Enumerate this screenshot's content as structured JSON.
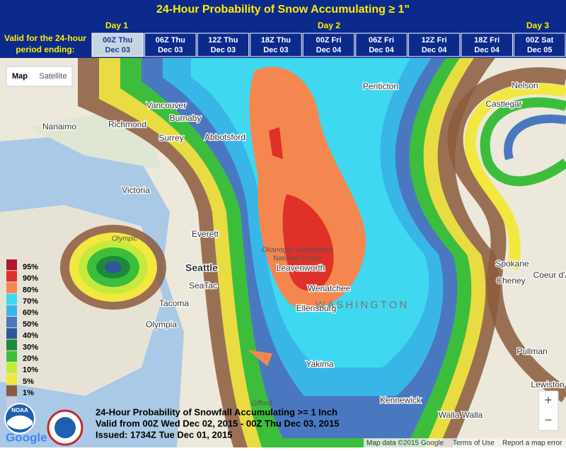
{
  "header": {
    "title": "24-Hour Probability of Snow Accumulating ≥ 1\"",
    "days": [
      "Day 1",
      "Day 2",
      "Day 3"
    ],
    "valid_label": [
      "Valid for the 24-hour",
      "period ending:"
    ],
    "tabs": [
      {
        "time": "00Z Thu",
        "date": "Dec 03"
      },
      {
        "time": "06Z Thu",
        "date": "Dec 03"
      },
      {
        "time": "12Z Thu",
        "date": "Dec 03"
      },
      {
        "time": "18Z Thu",
        "date": "Dec 03"
      },
      {
        "time": "00Z Fri",
        "date": "Dec 04"
      },
      {
        "time": "06Z Fri",
        "date": "Dec 04"
      },
      {
        "time": "12Z Fri",
        "date": "Dec 04"
      },
      {
        "time": "18Z Fri",
        "date": "Dec 04"
      },
      {
        "time": "00Z Sat",
        "date": "Dec 05"
      }
    ]
  },
  "map_controls": [
    "Map",
    "Satellite"
  ],
  "places": [
    "Vancouver",
    "Burnaby",
    "Richmond",
    "Nanaimo",
    "Surrey",
    "Abbotsford",
    "Victoria",
    "Everett",
    "Seattle",
    "SeaTac",
    "Tacoma",
    "Olympia",
    "Penticton",
    "Nelson",
    "Castlegar",
    "Spokane",
    "Cheney",
    "Coeur d'A",
    "Pullman",
    "Lewiston",
    "Kennewick",
    "Walla Walla",
    "Yakima",
    "Ellensburg",
    "Wenatchee",
    "Leavenworth",
    "WASHINGTON",
    "Okanogan-Wenatchee",
    "National Forest",
    "Olympic",
    "Gifford"
  ],
  "legend": [
    {
      "label": "95%",
      "color": "#b2182b"
    },
    {
      "label": "90%",
      "color": "#e0302a"
    },
    {
      "label": "80%",
      "color": "#f4874f"
    },
    {
      "label": "70%",
      "color": "#3fd8f0"
    },
    {
      "label": "60%",
      "color": "#38b6e8"
    },
    {
      "label": "50%",
      "color": "#4a78c0"
    },
    {
      "label": "40%",
      "color": "#30569a"
    },
    {
      "label": "30%",
      "color": "#1d8a3a"
    },
    {
      "label": "20%",
      "color": "#3cbe3c"
    },
    {
      "label": "10%",
      "color": "#c6ea3c"
    },
    {
      "label": "5%",
      "color": "#f2e840"
    },
    {
      "label": "1%",
      "color": "#8c5a3c"
    }
  ],
  "overlay": [
    "24-Hour Probability of Snowfall Accumulating >= 1 Inch",
    "Valid from 00Z Wed Dec 02, 2015 - 00Z Thu Dec 03, 2015",
    "Issued: 1734Z Tue Dec 01, 2015"
  ],
  "logos": [
    "NOAA",
    "Google"
  ],
  "zoom": [
    "+",
    "−"
  ],
  "footer": [
    "Map data ©2015 Google",
    "Terms of Use",
    "Report a map error"
  ]
}
